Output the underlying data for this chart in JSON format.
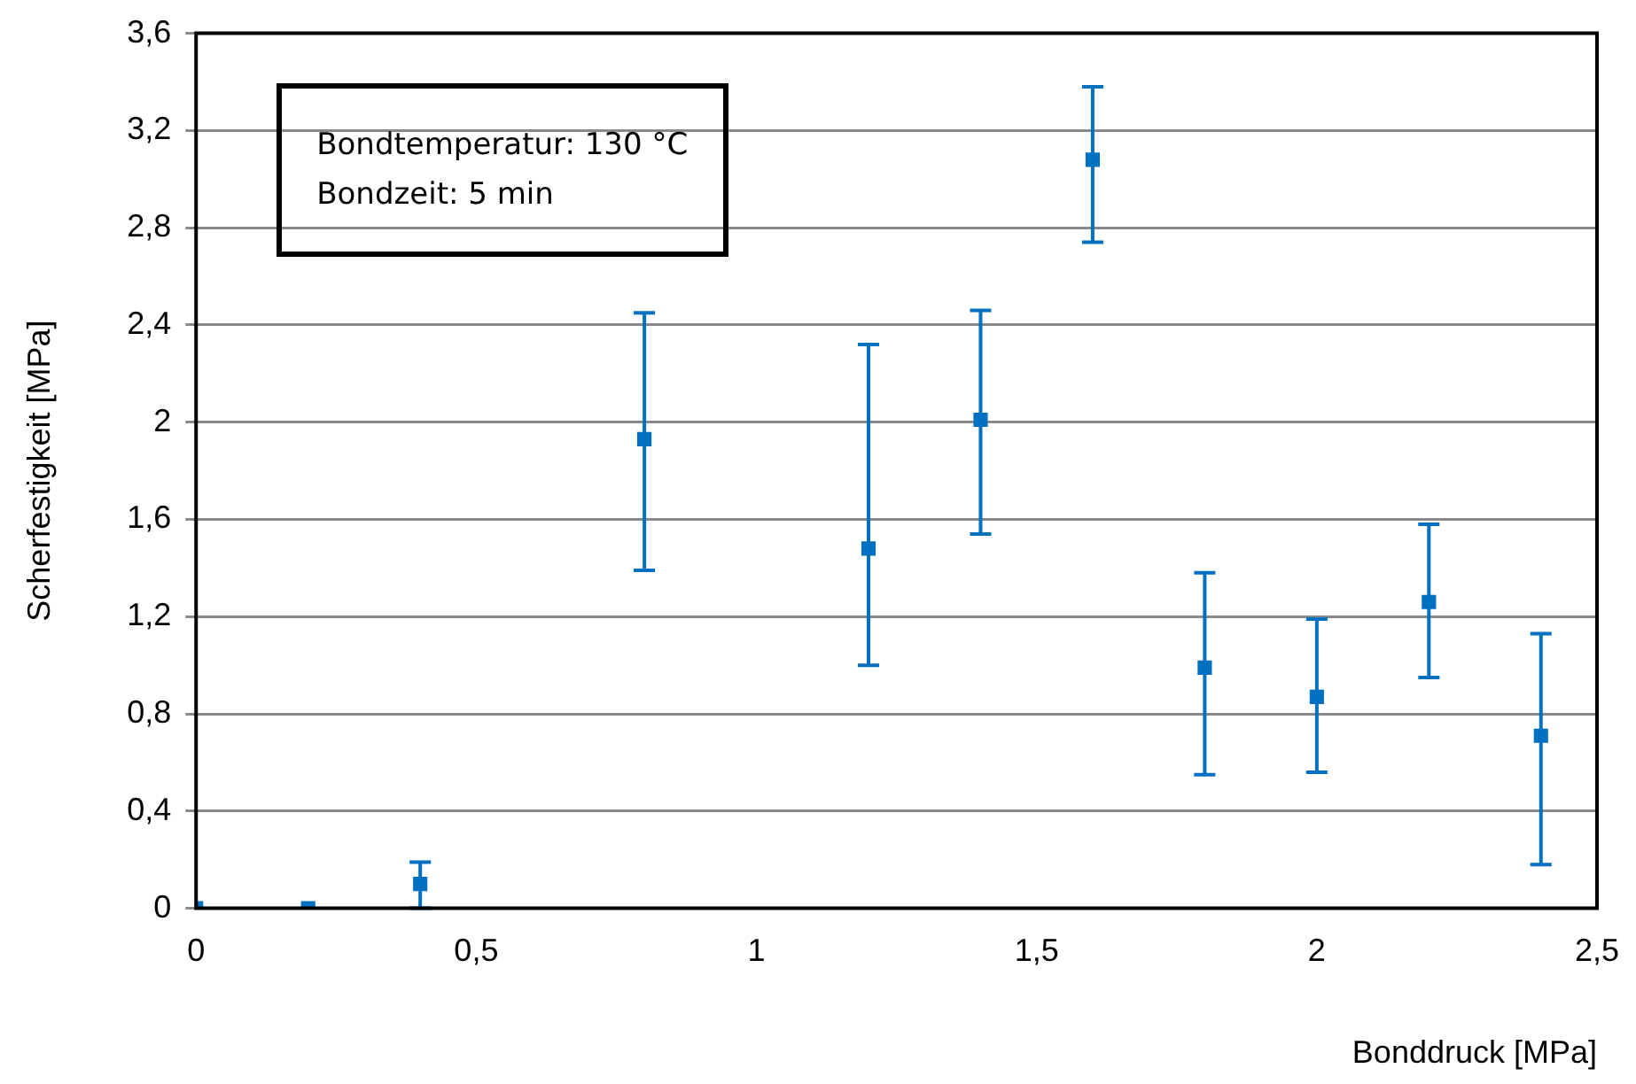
{
  "chart_data": {
    "type": "scatter",
    "xlabel": "Bonddruck [MPa]",
    "ylabel": "Scherfestigkeit [MPa]",
    "annotations": [
      "Bondtemperatur: 130 °C",
      "Bondzeit: 5 min"
    ],
    "x": [
      0,
      0.2,
      0.4,
      0.8,
      1.2,
      1.4,
      1.6,
      1.8,
      2.0,
      2.2,
      2.4
    ],
    "series": [
      {
        "color": "#0070c0",
        "values": [
          0,
          0,
          0.1,
          1.93,
          1.48,
          2.01,
          3.08,
          0.99,
          0.87,
          1.26,
          0.71
        ],
        "errors": [
          null,
          null,
          [
            0,
            0.19
          ],
          [
            1.39,
            2.45
          ],
          [
            1.0,
            2.32
          ],
          [
            1.54,
            2.46
          ],
          [
            2.74,
            3.38
          ],
          [
            0.55,
            1.38
          ],
          [
            0.56,
            1.19
          ],
          [
            0.95,
            1.58
          ],
          [
            0.18,
            1.13
          ]
        ]
      }
    ],
    "xlim": [
      0,
      2.5
    ],
    "ylim": [
      0,
      3.6
    ],
    "xticks": [
      0,
      {
        "value": 0.5,
        "label": "0,5"
      },
      1,
      {
        "value": 1.5,
        "label": "1,5"
      },
      2,
      {
        "value": 2.5,
        "label": "2,5"
      }
    ],
    "yticks": [
      0,
      {
        "value": 0.4,
        "label": "0,4"
      },
      {
        "value": 0.8,
        "label": "0,8"
      },
      {
        "value": 1.2,
        "label": "1,2"
      },
      {
        "value": 1.6,
        "label": "1,6"
      },
      2,
      {
        "value": 2.4,
        "label": "2,4"
      },
      {
        "value": 2.8,
        "label": "2,8"
      },
      {
        "value": 3.2,
        "label": "3,2"
      },
      {
        "value": 3.6,
        "label": "3,6"
      }
    ],
    "grid": "y",
    "marker": "square"
  }
}
